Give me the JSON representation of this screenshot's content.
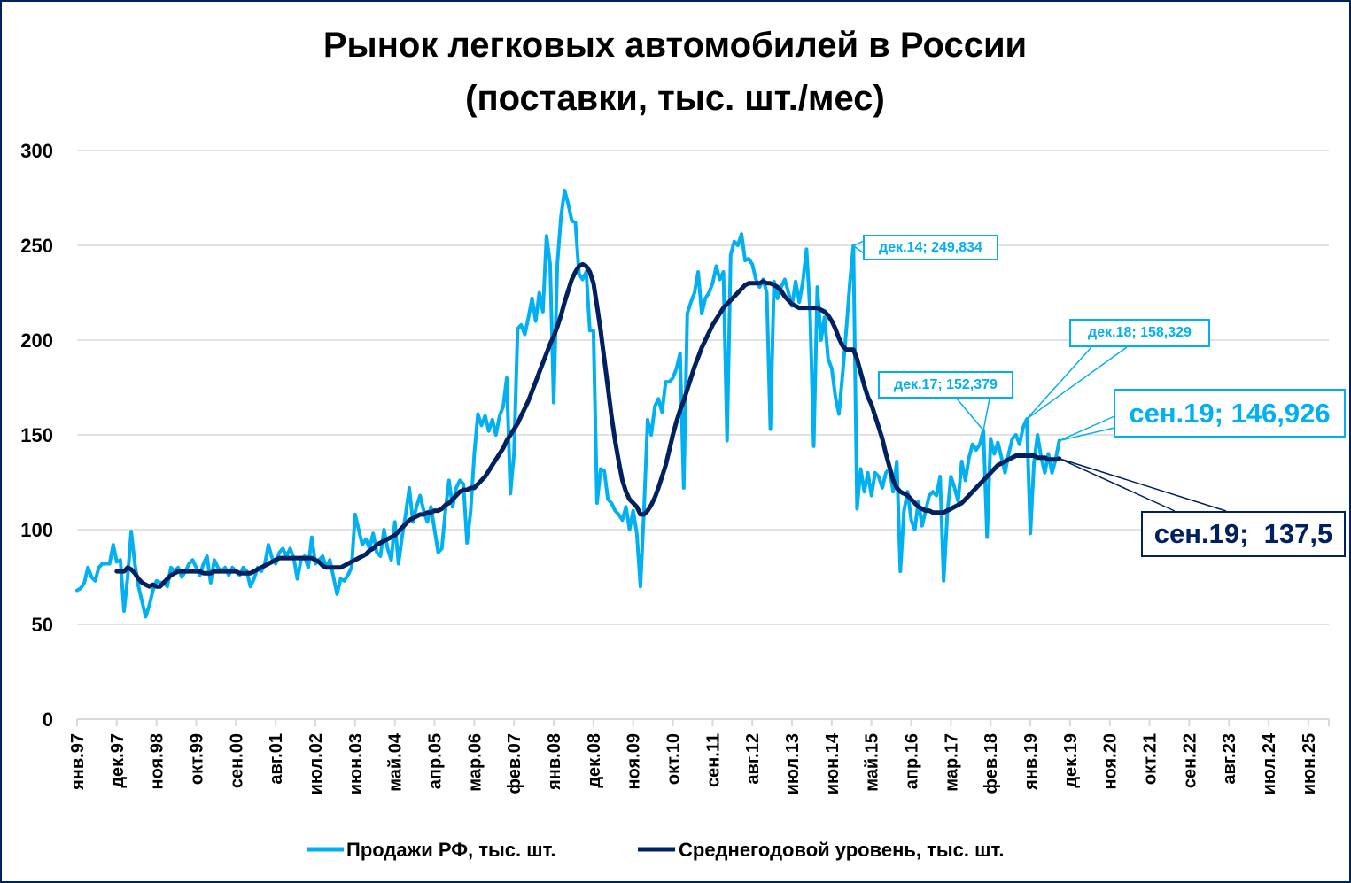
{
  "chart_data": {
    "type": "line",
    "title": [
      "Рынок легковых автомобилей в России",
      "(поставки, тыс. шт./мес)"
    ],
    "xlabel": "",
    "ylabel": "",
    "ylim": [
      0,
      300
    ],
    "yticks": [
      "0",
      "50",
      "100",
      "150",
      "200",
      "250",
      "300"
    ],
    "x_start": "янв.97",
    "x_months_total": 346,
    "grid": true,
    "legend_position": "bottom",
    "xtick_labels": [
      "янв.97",
      "дек.97",
      "ноя.98",
      "окт.99",
      "сен.00",
      "авг.01",
      "июл.02",
      "июн.03",
      "май.04",
      "апр.05",
      "мар.06",
      "фев.07",
      "янв.08",
      "дек.08",
      "ноя.09",
      "окт.10",
      "сен.11",
      "авг.12",
      "июл.13",
      "июн.14",
      "май.15",
      "апр.16",
      "мар.17",
      "фев.18",
      "янв.19",
      "дек.19",
      "ноя.20",
      "окт.21",
      "сен.22",
      "авг.23",
      "июл.24",
      "июн.25"
    ],
    "xtick_step_months": 11,
    "series": [
      {
        "name": "Продажи РФ, тыс. шт.",
        "color": "#00B0F0",
        "start_month_index": 0,
        "values": [
          68,
          69,
          72,
          80,
          75,
          73,
          80,
          82,
          82,
          82,
          92,
          83,
          84,
          57,
          75,
          99,
          82,
          70,
          62,
          54,
          60,
          68,
          73,
          72,
          72,
          70,
          80,
          78,
          80,
          75,
          78,
          82,
          84,
          80,
          76,
          82,
          86,
          72,
          84,
          80,
          78,
          80,
          76,
          80,
          78,
          76,
          80,
          78,
          70,
          74,
          80,
          78,
          82,
          92,
          85,
          82,
          88,
          90,
          86,
          90,
          85,
          74,
          84,
          86,
          80,
          96,
          82,
          84,
          86,
          80,
          84,
          75,
          66,
          74,
          73,
          76,
          80,
          108,
          100,
          92,
          95,
          90,
          98,
          88,
          86,
          100,
          90,
          84,
          104,
          82,
          96,
          108,
          122,
          104,
          112,
          118,
          110,
          104,
          112,
          100,
          88,
          90,
          110,
          126,
          112,
          122,
          126,
          124,
          93,
          110,
          140,
          161,
          155,
          160,
          152,
          158,
          150,
          160,
          165,
          180,
          119,
          140,
          206,
          208,
          203,
          212,
          222,
          210,
          225,
          215,
          255,
          240,
          167,
          240,
          265,
          279,
          272,
          263,
          262,
          235,
          232,
          236,
          205,
          205,
          114,
          132,
          131,
          116,
          114,
          110,
          108,
          105,
          112,
          100,
          110,
          98,
          70,
          110,
          158,
          150,
          165,
          169,
          162,
          178,
          178,
          180,
          185,
          193,
          122,
          214,
          220,
          225,
          236,
          214,
          222,
          225,
          230,
          239,
          232,
          236,
          147,
          245,
          252,
          250,
          256,
          242,
          243,
          240,
          232,
          228,
          232,
          225,
          153,
          231,
          222,
          228,
          232,
          225,
          218,
          231,
          220,
          231,
          248,
          215,
          144,
          228,
          200,
          212,
          190,
          185,
          170,
          161,
          182,
          205,
          230,
          249.834,
          111,
          132,
          120,
          130,
          118,
          130,
          128,
          122,
          130,
          132,
          120,
          136,
          78,
          110,
          120,
          105,
          100,
          115,
          102,
          110,
          118,
          120,
          118,
          128,
          73,
          108,
          128,
          122,
          115,
          136,
          126,
          138,
          145,
          142,
          145,
          152.379,
          96,
          148,
          140,
          146,
          138,
          130,
          140,
          148,
          150,
          145,
          154,
          158.329,
          98,
          135,
          150,
          138,
          130,
          140,
          130,
          137,
          146.926
        ]
      },
      {
        "name": "Среднегодовой уровень, тыс. шт.",
        "color": "#002060",
        "start_month_index": 11,
        "values": [
          78,
          78,
          78,
          80,
          79,
          77,
          74,
          72,
          71,
          70,
          71,
          70,
          70,
          72,
          74,
          76,
          77,
          78,
          78,
          78,
          78,
          78,
          78,
          78,
          77,
          77,
          77,
          78,
          78,
          78,
          78,
          78,
          78,
          78,
          77,
          77,
          77,
          77,
          78,
          79,
          80,
          81,
          82,
          83,
          84,
          85,
          85,
          85,
          85,
          85,
          85,
          85,
          85,
          85,
          85,
          84,
          83,
          81,
          80,
          80,
          80,
          80,
          80,
          81,
          82,
          83,
          84,
          85,
          86,
          87,
          89,
          90,
          92,
          93,
          94,
          95,
          96,
          97,
          99,
          101,
          103,
          105,
          106,
          107,
          108,
          108,
          109,
          109,
          110,
          110,
          111,
          113,
          114,
          116,
          118,
          120,
          121,
          121,
          122,
          122,
          124,
          126,
          128,
          131,
          134,
          137,
          140,
          143,
          147,
          150,
          153,
          156,
          160,
          164,
          168,
          173,
          178,
          183,
          188,
          193,
          198,
          202,
          207,
          213,
          220,
          226,
          232,
          236,
          239,
          240,
          239,
          236,
          230,
          218,
          205,
          190,
          175,
          160,
          147,
          136,
          126,
          120,
          116,
          114,
          112,
          108,
          108,
          110,
          113,
          117,
          122,
          128,
          134,
          142,
          150,
          157,
          163,
          168,
          174,
          180,
          186,
          191,
          196,
          200,
          204,
          208,
          211,
          214,
          217,
          219,
          221,
          223,
          225,
          227,
          229,
          230,
          230,
          230,
          230,
          231,
          230,
          230,
          229,
          228,
          226,
          223,
          221,
          219,
          218,
          217,
          217,
          217,
          217,
          217,
          217,
          216,
          215,
          213,
          210,
          206,
          201,
          197,
          195,
          195,
          195,
          190,
          183,
          176,
          170,
          166,
          160,
          154,
          148,
          140,
          133,
          126,
          122,
          120,
          119,
          118,
          116,
          114,
          112,
          111,
          110,
          110,
          109,
          109,
          109,
          109,
          110,
          111,
          112,
          113,
          114,
          116,
          118,
          120,
          122,
          124,
          126,
          128,
          130,
          132,
          134,
          135,
          136,
          137,
          138,
          139,
          139,
          139,
          139,
          139,
          139,
          138,
          138,
          138,
          137,
          137,
          137,
          137.5
        ]
      }
    ],
    "annotations": [
      {
        "text": "дек.14; 249,834",
        "month_index": 215,
        "value": 249.834,
        "series": 0
      },
      {
        "text": "дек.17; 152,379",
        "month_index": 251,
        "value": 152.379,
        "series": 0
      },
      {
        "text": "дек.18; 158,329",
        "month_index": 263,
        "value": 158.329,
        "series": 0
      },
      {
        "text": "сен.19; 146,926",
        "month_index": 272,
        "value": 146.926,
        "series": 0
      },
      {
        "text": "сен.19;  137,5",
        "month_index": 272,
        "value": 137.5,
        "series": 1
      }
    ]
  }
}
